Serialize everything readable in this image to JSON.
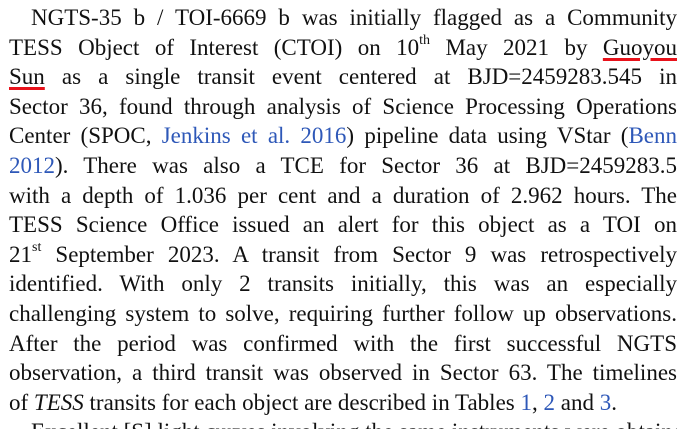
{
  "paragraph": {
    "l1a": "NGTS-35 b / TOI-6669 b was initially flagged as a Community",
    "l2a": "TESS Object of Interest (CTOI) on 10",
    "l2sup": "th",
    "l2b": " May 2021 by ",
    "l2name": "Guoyou",
    "l3name": "Sun",
    "l3b": " as a single transit event centered at BJD=2459283.545 in",
    "l4a": "Sector 36, found through analysis of Science Processing Operations",
    "l5a": "Center (SPOC, ",
    "l5cite": "Jenkins et al. 2016",
    "l5b": ") pipeline data using VStar (",
    "l5cite2": "Benn",
    "l6cite": "2012",
    "l6b": "). There was also a TCE for Sector 36 at BJD=2459283.5",
    "l7a": "with a depth of 1.036 per cent and a duration of 2.962 hours. The",
    "l8a": "TESS Science Office issued an alert for this object as a TOI on",
    "l9a": "21",
    "l9sup": "st",
    "l9b": " September 2023. A transit from Sector 9 was retrospectively",
    "l10a": "identified. With only 2 transits initially, this was an especially",
    "l11a": "challenging system to solve, requiring further follow up observations.",
    "l12a": "After the period was confirmed with the first successful NGTS",
    "l13a": "observation, a third transit was observed in Sector 63. The timelines",
    "l14a": "of ",
    "l14ital": "TESS",
    "l14b": " transits for each object are described in Tables ",
    "l14t1": "1",
    "l14c": ", ",
    "l14t2": "2",
    "l14d": " and ",
    "l14t3": "3",
    "l14e": "."
  },
  "next_paragraph": {
    "text": "Excellent [S] light curves involving the same instruments were obtained"
  },
  "colors": {
    "text": "#111111",
    "citation": "#2e58b8",
    "highlight_underline": "#e8121b"
  }
}
